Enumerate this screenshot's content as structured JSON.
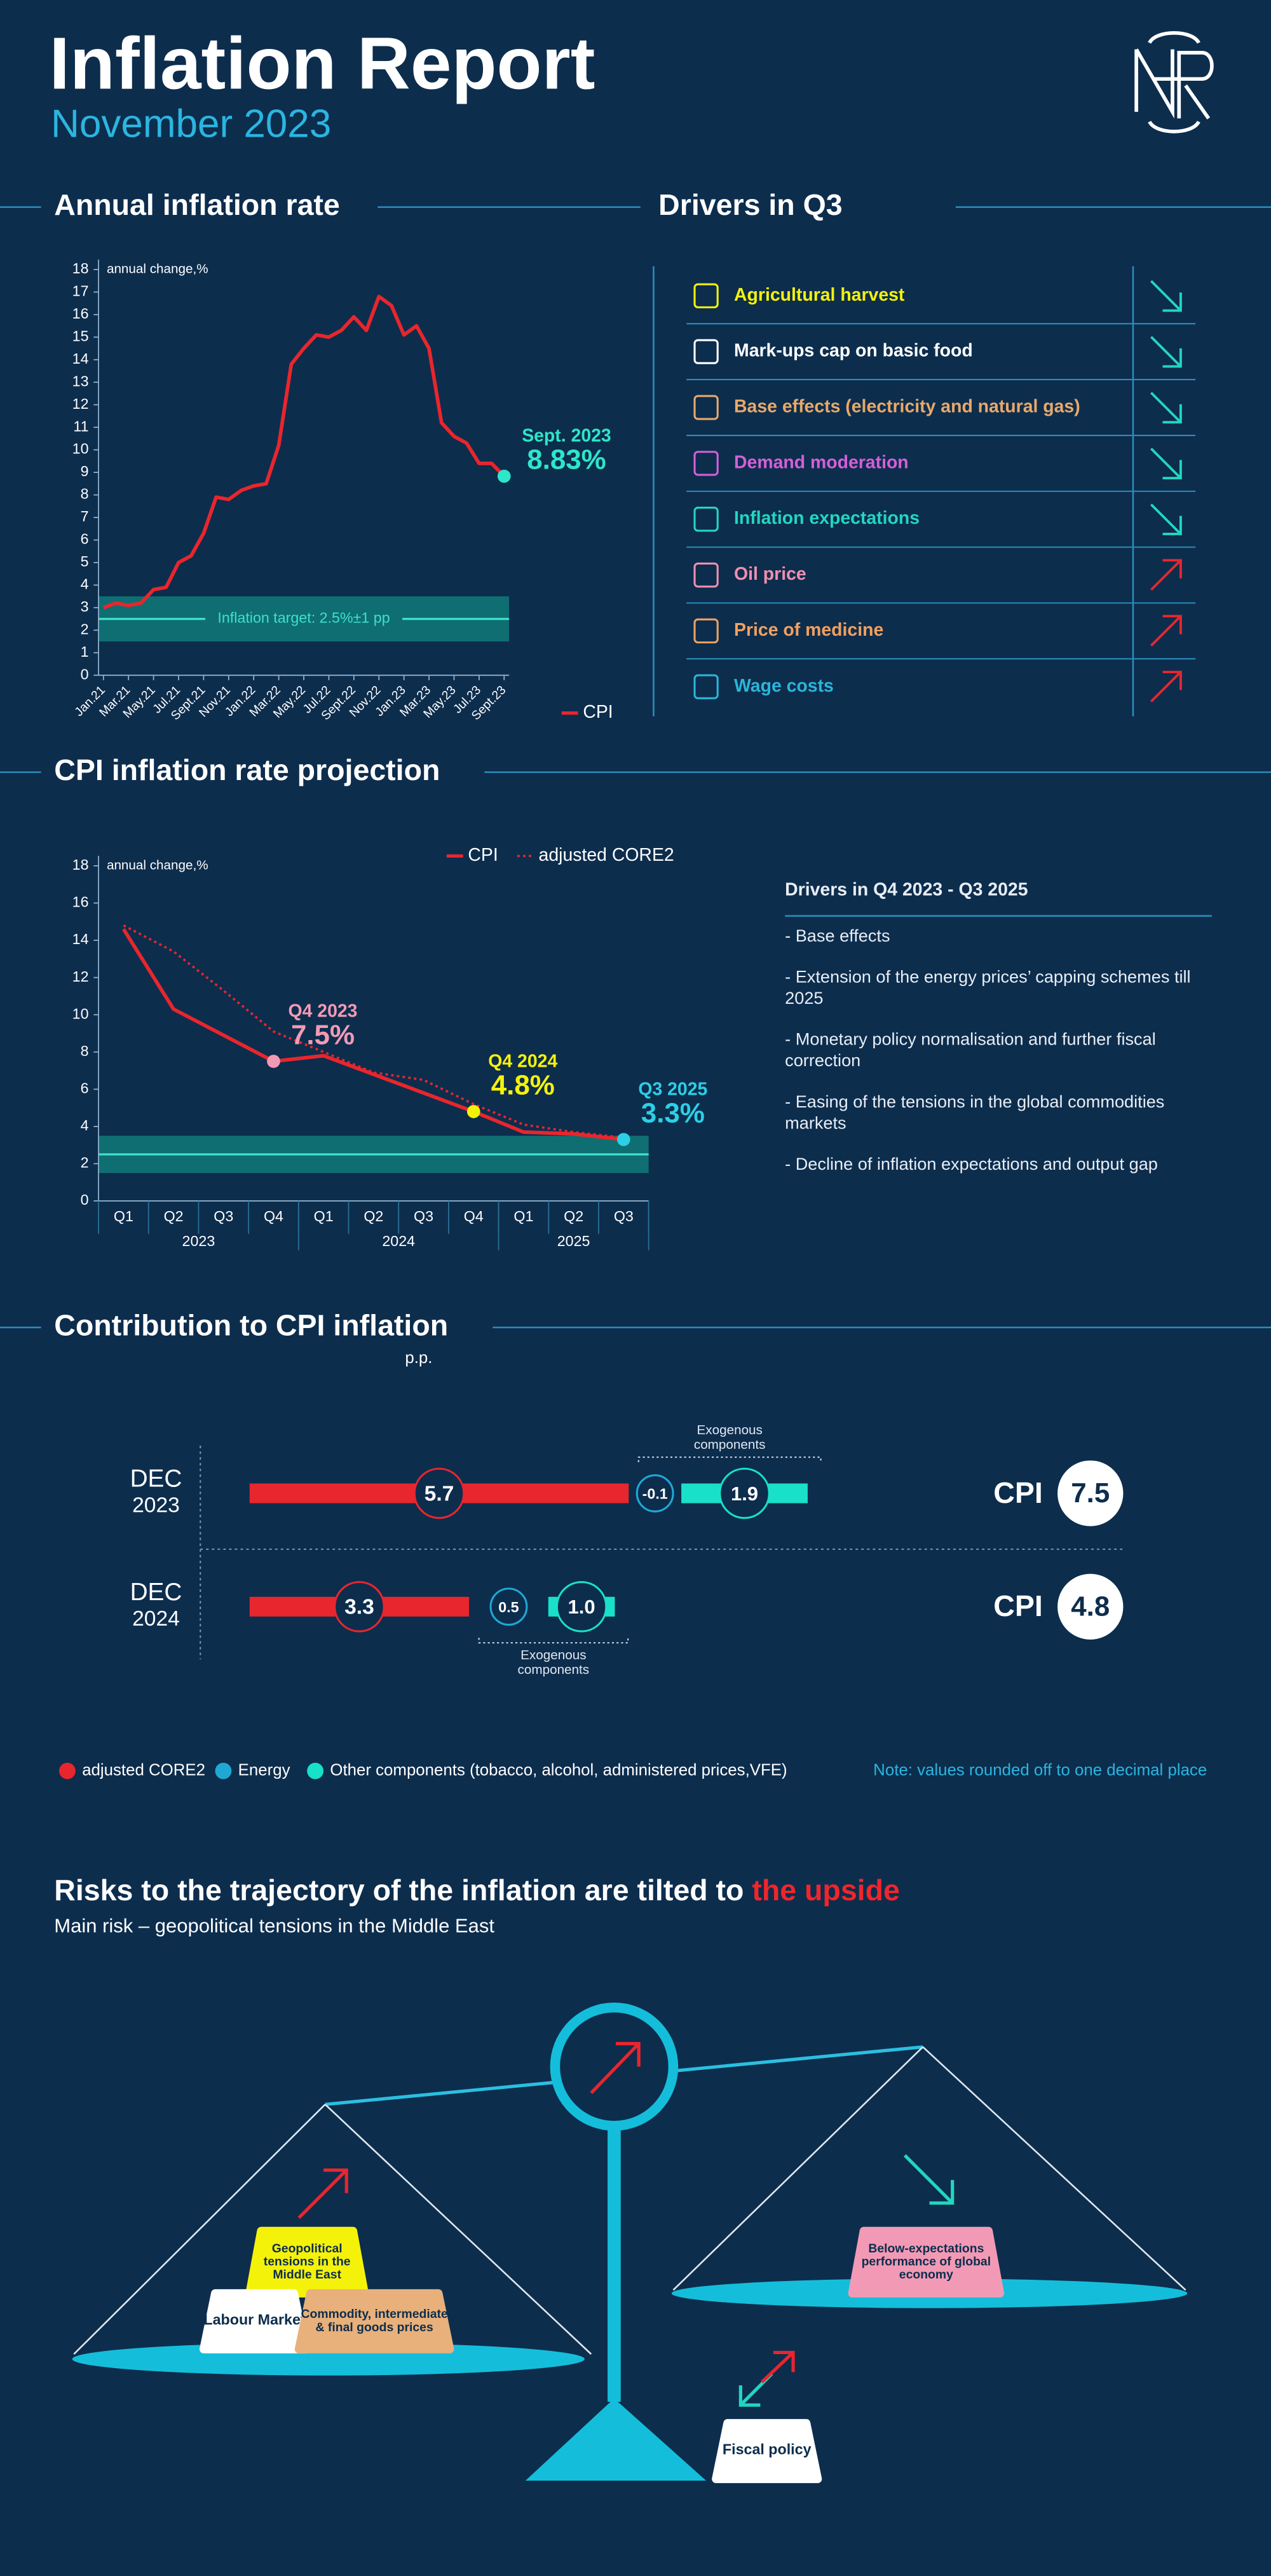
{
  "header": {
    "title": "Inflation Report",
    "subtitle": "November 2023"
  },
  "drivers": {
    "title": "Drivers in Q3",
    "arrow_colors": {
      "down": "#23d6c0",
      "up": "#e8262d"
    },
    "items": [
      {
        "label": "Agricultural harvest",
        "color": "#f2f20a",
        "direction": "down"
      },
      {
        "label": "Mark-ups cap on basic food",
        "color": "#ffffff",
        "direction": "down"
      },
      {
        "label": "Base effects (electricity and natural gas)",
        "color": "#e8a96a",
        "direction": "down"
      },
      {
        "label": "Demand moderation",
        "color": "#d55fd8",
        "direction": "down"
      },
      {
        "label": "Inflation expectations",
        "color": "#23d6c0",
        "direction": "down"
      },
      {
        "label": "Oil price",
        "color": "#ee8fb0",
        "direction": "up"
      },
      {
        "label": "Price of medicine",
        "color": "#f0a060",
        "direction": "up"
      },
      {
        "label": "Wage costs",
        "color": "#2bb5d8",
        "direction": "up"
      }
    ]
  },
  "drivers_outlook": {
    "title": "Drivers in Q4 2023 - Q3 2025",
    "items": [
      "- Base effects",
      "- Extension of the energy prices’ capping schemes till 2025",
      "- Monetary policy normalisation and further fiscal correction",
      "- Easing of the tensions in the global commodities markets",
      "- Decline of inflation expectations and output gap"
    ]
  },
  "chart_data": [
    {
      "type": "line",
      "title": "Annual inflation rate",
      "y_label": "annual change,%",
      "categories": [
        "Jan.21",
        null,
        "Mar.21",
        null,
        "May.21",
        null,
        "Jul.21",
        null,
        "Sept.21",
        null,
        "Nov.21",
        null,
        "Jan.22",
        null,
        "Mar.22",
        null,
        "May.22",
        null,
        "Jul.22",
        null,
        "Sept.22",
        null,
        "Nov.22",
        null,
        "Jan.23",
        null,
        "Mar.23",
        null,
        "May.23",
        null,
        "Jul.23",
        null,
        "Sept.23"
      ],
      "series": [
        {
          "name": "CPI",
          "color": "#e8262d",
          "values": [
            3.0,
            3.2,
            3.1,
            3.2,
            3.8,
            3.9,
            5.0,
            5.3,
            6.3,
            7.9,
            7.8,
            8.2,
            8.4,
            8.5,
            10.2,
            13.8,
            14.5,
            15.1,
            15.0,
            15.3,
            15.9,
            15.3,
            16.8,
            16.4,
            15.1,
            15.5,
            14.5,
            11.2,
            10.6,
            10.3,
            9.4,
            9.4,
            8.83
          ],
          "value_labels": [
            null,
            null,
            null,
            null,
            null,
            null,
            null,
            null,
            null,
            null,
            null,
            null,
            null,
            null,
            null,
            null,
            null,
            null,
            null,
            null,
            null,
            null,
            null,
            null,
            null,
            null,
            null,
            null,
            null,
            null,
            null,
            null,
            "8.83%"
          ],
          "point_labels": [
            null,
            null,
            null,
            null,
            null,
            null,
            null,
            null,
            null,
            null,
            null,
            null,
            null,
            null,
            null,
            null,
            null,
            null,
            null,
            null,
            null,
            null,
            null,
            null,
            null,
            null,
            null,
            null,
            null,
            null,
            null,
            null,
            "Sept. 2023"
          ],
          "point_colors": [
            null,
            null,
            null,
            null,
            null,
            null,
            null,
            null,
            null,
            null,
            null,
            null,
            null,
            null,
            null,
            null,
            null,
            null,
            null,
            null,
            null,
            null,
            null,
            null,
            null,
            null,
            null,
            null,
            null,
            null,
            null,
            null,
            "#2ee6c8"
          ]
        }
      ],
      "ylim": [
        0,
        18
      ],
      "yticks": [
        0,
        1,
        2,
        3,
        4,
        5,
        6,
        7,
        8,
        9,
        10,
        11,
        12,
        13,
        14,
        15,
        16,
        17,
        18
      ],
      "target_band": [
        1.5,
        3.5
      ],
      "target": 2.5,
      "target_label": "Inflation target: 2.5%±1 pp"
    },
    {
      "type": "line",
      "title": "CPI inflation rate projection",
      "y_label": "annual change,%",
      "categories": [
        "Q1",
        "Q2",
        "Q3",
        "Q4",
        "Q1",
        "Q2",
        "Q3",
        "Q4",
        "Q1",
        "Q2",
        "Q3"
      ],
      "groups": [
        {
          "label": "2023",
          "count": 4
        },
        {
          "label": "2024",
          "count": 4
        },
        {
          "label": "2025",
          "count": 3
        }
      ],
      "series": [
        {
          "name": "CPI",
          "color": "#e8262d",
          "values": [
            14.6,
            10.3,
            8.9,
            7.5,
            7.8,
            6.8,
            5.8,
            4.8,
            3.7,
            3.6,
            3.3
          ],
          "value_labels": [
            null,
            null,
            null,
            "7.5%",
            null,
            null,
            null,
            "4.8%",
            null,
            null,
            "3.3%"
          ],
          "point_labels": [
            null,
            null,
            null,
            "Q4 2023",
            null,
            null,
            null,
            "Q4 2024",
            null,
            null,
            "Q3 2025"
          ],
          "point_colors": [
            null,
            null,
            null,
            "#f29ab5",
            null,
            null,
            null,
            "#f5f20a",
            null,
            null,
            "#2bd0e6"
          ]
        },
        {
          "name": "adjusted CORE2",
          "color": "#e8262d",
          "dash": "dotted",
          "values": [
            14.8,
            13.4,
            11.3,
            9.1,
            8.0,
            6.9,
            6.5,
            5.2,
            4.1,
            3.7,
            3.4
          ]
        }
      ],
      "ylim": [
        0,
        18
      ],
      "yticks": [
        0,
        2,
        4,
        6,
        8,
        10,
        12,
        14,
        16,
        18
      ],
      "target_band": [
        1.5,
        3.5
      ],
      "target": 2.5
    },
    {
      "type": "bar",
      "orientation": "horizontal",
      "stacked": true,
      "title": "Contribution to CPI inflation",
      "unit": "p.p.",
      "categories": [
        [
          "DEC",
          "2023"
        ],
        [
          "DEC",
          "2024"
        ]
      ],
      "series": [
        {
          "name": "adjusted CORE2",
          "color": "#e8262d",
          "values": [
            5.7,
            3.3
          ]
        },
        {
          "name": "Energy",
          "color": "#1fa8d4",
          "values": [
            -0.1,
            0.5
          ]
        },
        {
          "name": "Other components (tobacco, alcohol, administered prices,VFE)",
          "color": "#19e0c8",
          "values": [
            1.9,
            1.0
          ],
          "value_labels": [
            "1.9",
            "1.0"
          ]
        }
      ],
      "group_label": "Exogenous components",
      "total_label": "CPI",
      "totals": [
        7.5,
        4.8
      ],
      "note": "Note: values rounded off to one decimal place"
    }
  ],
  "risks": {
    "title": "Risks to the trajectory of the inflation are tilted to ",
    "title_highlight": "the upside",
    "subtitle": "Main risk – geopolitical tensions in the Middle East",
    "factors": [
      {
        "label": "Geopolitical tensions in the Middle East",
        "color": "#f5f20a"
      },
      {
        "label": "Labour Market",
        "color": "#ffffff"
      },
      {
        "label": "Commodity, intermediate & final goods prices",
        "color": "#e8b07a"
      },
      {
        "label": "Below-expectations performance of global economy",
        "color": "#f29ab5"
      },
      {
        "label": "Fiscal policy",
        "color": "#ffffff"
      }
    ]
  }
}
